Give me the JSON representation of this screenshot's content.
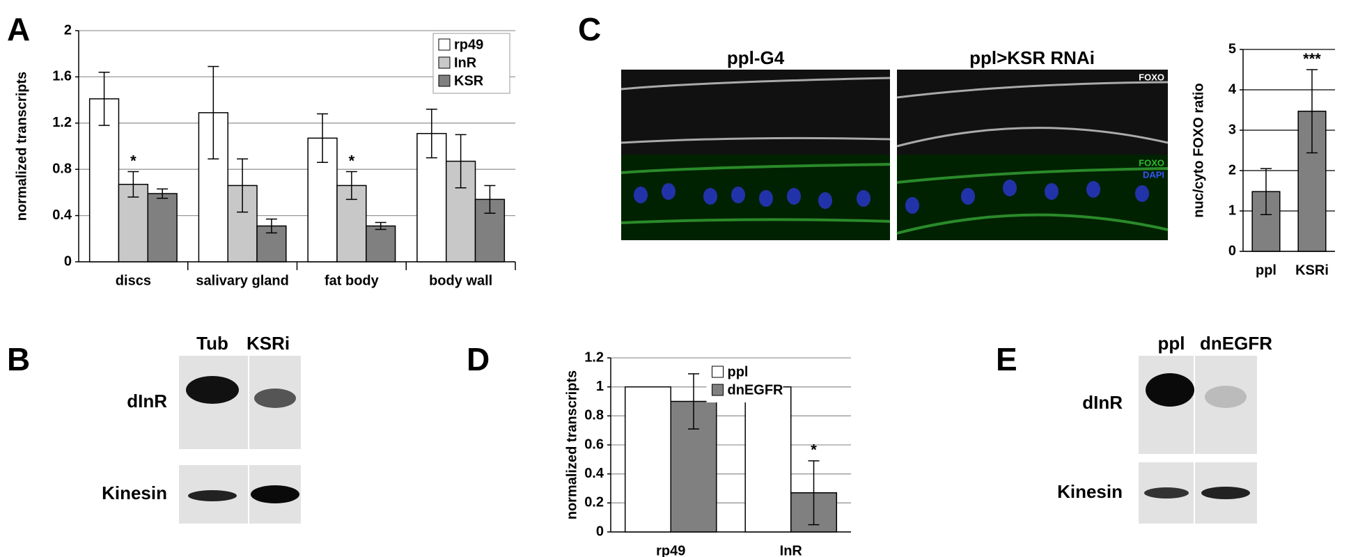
{
  "chart_data": [
    {
      "type": "bar",
      "ylabel": "normalized transcripts",
      "categories": [
        "discs",
        "salivary gland",
        "fat body",
        "body wall"
      ],
      "series": [
        {
          "name": "rp49",
          "color": "#ffffff",
          "values": [
            1.41,
            1.29,
            1.07,
            1.11
          ],
          "errors": [
            0.23,
            0.4,
            0.21,
            0.21
          ]
        },
        {
          "name": "InR",
          "color": "#c8c8c8",
          "values": [
            0.67,
            0.66,
            0.66,
            0.87
          ],
          "errors": [
            0.11,
            0.23,
            0.12,
            0.23
          ]
        },
        {
          "name": "KSR",
          "color": "#808080",
          "values": [
            0.59,
            0.31,
            0.31,
            0.54
          ],
          "errors": [
            0.04,
            0.06,
            0.03,
            0.12
          ]
        }
      ],
      "ylim": [
        0,
        2
      ],
      "yticks": [
        0,
        0.4,
        0.8,
        1.2,
        1.6,
        2
      ],
      "grid": true,
      "legend": "upper right",
      "annotations": [
        {
          "text": "*",
          "x": "discs",
          "series": "InR"
        },
        {
          "text": "*",
          "x": "fat body",
          "series": "InR"
        }
      ]
    },
    {
      "type": "bar",
      "ylabel": "nuc/cyto FOXO ratio",
      "categories": [
        "ppl",
        "KSRi"
      ],
      "values": [
        1.48,
        3.47
      ],
      "errors": [
        0.57,
        1.03
      ],
      "color": "#808080",
      "ylim": [
        0,
        5
      ],
      "yticks": [
        0,
        1,
        2,
        3,
        4,
        5
      ],
      "grid": true,
      "annotations": [
        {
          "text": "***",
          "x": "KSRi"
        }
      ]
    },
    {
      "type": "bar",
      "ylabel": "normalized transcripts",
      "categories": [
        "rp49",
        "InR"
      ],
      "series": [
        {
          "name": "ppl",
          "color": "#ffffff",
          "values": [
            1,
            1
          ],
          "errors": [
            null,
            null
          ]
        },
        {
          "name": "dnEGFR",
          "color": "#808080",
          "values": [
            0.9,
            0.27
          ],
          "errors": [
            0.19,
            0.22
          ]
        }
      ],
      "ylim": [
        0,
        1.2
      ],
      "yticks": [
        0,
        0.2,
        0.4,
        0.6,
        0.8,
        1,
        1.2
      ],
      "grid": true,
      "legend": "upper center",
      "annotations": [
        {
          "text": "*",
          "x": "InR",
          "series": "dnEGFR"
        }
      ]
    }
  ],
  "panel_labels": [
    "A",
    "B",
    "C",
    "D",
    "E"
  ],
  "blot_b": {
    "lanes": [
      "Tub",
      "KSRi"
    ],
    "rows": [
      "dInR",
      "Kinesin"
    ]
  },
  "image_c": {
    "titles": [
      "ppl-G4",
      "ppl>KSR RNAi"
    ],
    "channels": [
      "FOXO",
      "FOXO",
      "DAPI"
    ]
  },
  "blot_e": {
    "lanes": [
      "ppl",
      "dnEGFR"
    ],
    "rows": [
      "dInR",
      "Kinesin"
    ]
  }
}
